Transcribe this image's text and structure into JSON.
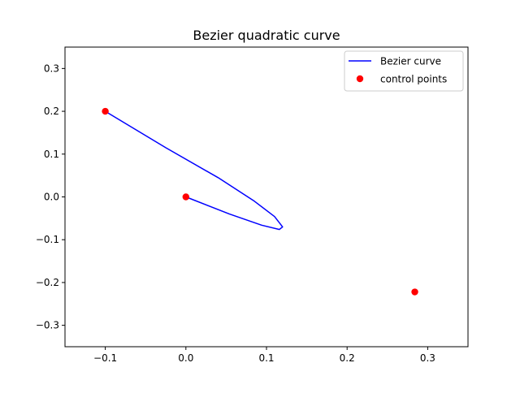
{
  "chart_data": {
    "type": "line",
    "title": "Bezier quadratic curve",
    "xlabel": "",
    "ylabel": "",
    "xlim": [
      -0.15,
      0.35
    ],
    "ylim": [
      -0.35,
      0.35
    ],
    "x_ticks": [
      -0.1,
      0.0,
      0.1,
      0.2,
      0.3
    ],
    "x_tick_labels": [
      "−0.1",
      "0.0",
      "0.1",
      "0.2",
      "0.3"
    ],
    "y_ticks": [
      -0.3,
      -0.2,
      -0.1,
      0.0,
      0.1,
      0.2,
      0.3
    ],
    "y_tick_labels": [
      "−0.3",
      "−0.2",
      "−0.1",
      "0.0",
      "0.1",
      "0.2",
      "0.3"
    ],
    "grid": false,
    "legend_position": "upper right",
    "series": [
      {
        "name": "Bezier curve",
        "kind": "line",
        "color": "#0000ff",
        "x": [
          0.0,
          0.054,
          0.094,
          0.116,
          0.12,
          0.11,
          0.085,
          0.04,
          -0.025,
          -0.1
        ],
        "y": [
          0.0,
          -0.04,
          -0.066,
          -0.076,
          -0.07,
          -0.046,
          -0.01,
          0.045,
          0.115,
          0.2
        ]
      },
      {
        "name": "control points",
        "kind": "scatter",
        "color": "#ff0000",
        "x": [
          0.0,
          -0.1,
          0.284
        ],
        "y": [
          0.0,
          0.2,
          -0.222
        ]
      }
    ]
  }
}
